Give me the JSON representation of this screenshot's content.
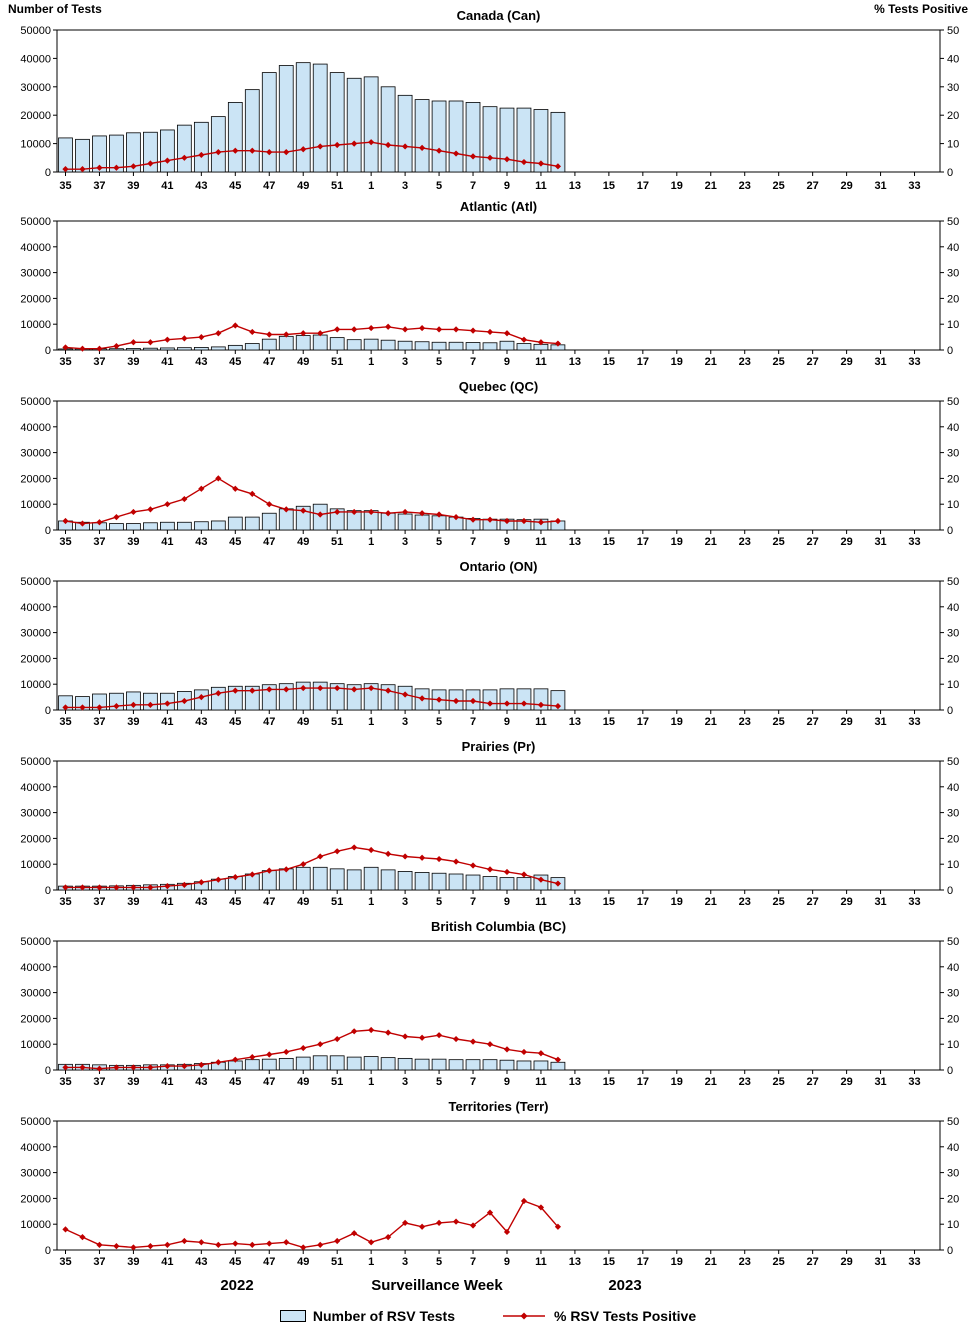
{
  "page": {
    "left_axis_title": "Number of Tests",
    "right_axis_title": "% Tests Positive",
    "x_axis_title": "Surveillance Week",
    "year_left": "2022",
    "year_right": "2023",
    "legend": {
      "bars": "Number of RSV Tests",
      "line": "% RSV Tests Positive"
    },
    "colors": {
      "bar_fill": "#cbe4f5",
      "bar_stroke": "#000000",
      "line": "#c00000"
    }
  },
  "x_axis": {
    "tick_labels": [
      "35",
      "37",
      "39",
      "41",
      "43",
      "45",
      "47",
      "49",
      "51",
      "1",
      "3",
      "5",
      "7",
      "9",
      "11",
      "13",
      "15",
      "17",
      "19",
      "21",
      "23",
      "25",
      "27",
      "29",
      "31",
      "33"
    ],
    "weeks_2022": "35-52",
    "weeks_2023": "1-34"
  },
  "weeks": [
    35,
    36,
    37,
    38,
    39,
    40,
    41,
    42,
    43,
    44,
    45,
    46,
    47,
    48,
    49,
    50,
    51,
    52,
    1,
    2,
    3,
    4,
    5,
    6,
    7,
    8,
    9,
    10,
    11,
    12
  ],
  "chart_data": [
    {
      "type": "bar+line",
      "title": "Canada (Can)",
      "ylim_left": [
        0,
        50000
      ],
      "ylim_right": [
        0,
        50
      ],
      "series": [
        {
          "name": "Number of RSV Tests",
          "kind": "bar",
          "axis": "left",
          "values": [
            12000,
            11500,
            12700,
            13000,
            13800,
            14000,
            14800,
            16500,
            17500,
            19500,
            24500,
            29000,
            35000,
            37500,
            38500,
            38000,
            35000,
            33000,
            33500,
            30000,
            27000,
            25500,
            25000,
            25000,
            24500,
            23000,
            22500,
            22500,
            22000,
            21000
          ]
        },
        {
          "name": "% RSV Tests Positive",
          "kind": "line",
          "axis": "right",
          "values": [
            1,
            1,
            1.5,
            1.5,
            2,
            3,
            4,
            5,
            6,
            7,
            7.5,
            7.5,
            7,
            7,
            8,
            9,
            9.5,
            10,
            10.5,
            9.5,
            9,
            8.5,
            7.5,
            6.5,
            5.5,
            5,
            4.5,
            3.5,
            3,
            2
          ]
        }
      ]
    },
    {
      "type": "bar+line",
      "title": "Atlantic (Atl)",
      "ylim_left": [
        0,
        50000
      ],
      "ylim_right": [
        0,
        50
      ],
      "series": [
        {
          "name": "Number of RSV Tests",
          "kind": "bar",
          "axis": "left",
          "values": [
            400,
            400,
            450,
            500,
            600,
            700,
            800,
            900,
            1000,
            1200,
            1800,
            2500,
            4200,
            5300,
            5600,
            5800,
            4800,
            4000,
            4200,
            3800,
            3400,
            3200,
            3000,
            3000,
            2900,
            2800,
            3400,
            2500,
            2200,
            2000
          ]
        },
        {
          "name": "% RSV Tests Positive",
          "kind": "line",
          "axis": "right",
          "values": [
            1,
            0.5,
            0.5,
            1.5,
            3,
            3,
            4,
            4.5,
            5,
            6.5,
            9.5,
            7,
            6,
            6,
            6.5,
            6.5,
            8,
            8,
            8.5,
            9,
            8,
            8.5,
            8,
            8,
            7.5,
            7,
            6.5,
            4,
            3,
            2.5
          ]
        }
      ]
    },
    {
      "type": "bar+line",
      "title": "Quebec (QC)",
      "ylim_left": [
        0,
        50000
      ],
      "ylim_right": [
        0,
        50
      ],
      "series": [
        {
          "name": "Number of RSV Tests",
          "kind": "bar",
          "axis": "left",
          "values": [
            3500,
            3000,
            2800,
            2500,
            2500,
            2800,
            3000,
            3000,
            3200,
            3500,
            5000,
            5000,
            6500,
            8200,
            9200,
            10000,
            8200,
            7500,
            7500,
            6500,
            6200,
            5800,
            5500,
            5000,
            4500,
            4200,
            4200,
            4000,
            4200,
            3500
          ]
        },
        {
          "name": "% RSV Tests Positive",
          "kind": "line",
          "axis": "right",
          "values": [
            3.5,
            2.5,
            3,
            5,
            7,
            8,
            10,
            12,
            16,
            20,
            16,
            14,
            10,
            8,
            7.5,
            6,
            7,
            7,
            7,
            6.5,
            7,
            6.5,
            6,
            5,
            4,
            4,
            3.5,
            3.5,
            3,
            3.5
          ]
        }
      ]
    },
    {
      "type": "bar+line",
      "title": "Ontario (ON)",
      "ylim_left": [
        0,
        50000
      ],
      "ylim_right": [
        0,
        50
      ],
      "series": [
        {
          "name": "Number of RSV Tests",
          "kind": "bar",
          "axis": "left",
          "values": [
            5500,
            5200,
            6200,
            6500,
            7000,
            6500,
            6500,
            7200,
            7800,
            8800,
            9200,
            9200,
            9800,
            10200,
            10800,
            10800,
            10200,
            9800,
            10200,
            9800,
            9200,
            8200,
            7800,
            7800,
            7800,
            7800,
            8200,
            8200,
            8200,
            7500
          ]
        },
        {
          "name": "% RSV Tests Positive",
          "kind": "line",
          "axis": "right",
          "values": [
            1,
            1,
            1,
            1.5,
            2,
            2,
            2.5,
            3.5,
            5,
            6.5,
            7.5,
            7.5,
            8,
            8,
            8.5,
            8.5,
            8.5,
            8,
            8.5,
            7.5,
            6,
            4.5,
            4,
            3.5,
            3.5,
            2.5,
            2.5,
            2.5,
            2,
            1.5
          ]
        }
      ]
    },
    {
      "type": "bar+line",
      "title": "Prairies (Pr)",
      "ylim_left": [
        0,
        50000
      ],
      "ylim_right": [
        0,
        50
      ],
      "series": [
        {
          "name": "Number of RSV Tests",
          "kind": "bar",
          "axis": "left",
          "values": [
            1500,
            1500,
            1500,
            1600,
            1800,
            2000,
            2200,
            2600,
            3200,
            4200,
            5200,
            6200,
            7500,
            8200,
            8800,
            8800,
            8200,
            7800,
            8800,
            7800,
            7200,
            6800,
            6500,
            6200,
            5800,
            5200,
            4800,
            4800,
            5800,
            4800
          ]
        },
        {
          "name": "% RSV Tests Positive",
          "kind": "line",
          "axis": "right",
          "values": [
            1,
            1,
            1,
            1,
            1,
            1,
            1.5,
            2,
            3,
            4,
            5,
            6,
            7.5,
            8,
            10,
            13,
            15,
            16.5,
            15.5,
            14,
            13,
            12.5,
            12,
            11,
            9.5,
            8,
            7,
            6,
            4,
            2.5
          ]
        }
      ]
    },
    {
      "type": "bar+line",
      "title": "British Columbia (BC)",
      "ylim_left": [
        0,
        50000
      ],
      "ylim_right": [
        0,
        50
      ],
      "series": [
        {
          "name": "Number of RSV Tests",
          "kind": "bar",
          "axis": "left",
          "values": [
            2200,
            2200,
            2000,
            1800,
            1800,
            2000,
            2000,
            2200,
            2500,
            3000,
            3500,
            4000,
            4200,
            4500,
            5000,
            5500,
            5500,
            5000,
            5200,
            4800,
            4500,
            4200,
            4200,
            4000,
            4000,
            4000,
            3800,
            3500,
            3500,
            3000
          ]
        },
        {
          "name": "% RSV Tests Positive",
          "kind": "line",
          "axis": "right",
          "values": [
            1,
            1,
            0.5,
            1,
            1,
            1,
            1.5,
            1.5,
            2,
            3,
            4,
            5,
            6,
            7,
            8.5,
            10,
            12,
            15,
            15.5,
            14.5,
            13,
            12.5,
            13.5,
            12,
            11,
            10,
            8,
            7,
            6.5,
            4
          ]
        }
      ]
    },
    {
      "type": "bar+line",
      "title": "Territories (Terr)",
      "ylim_left": [
        0,
        50000
      ],
      "ylim_right": [
        0,
        50
      ],
      "series": [
        {
          "name": "Number of RSV Tests",
          "kind": "bar",
          "axis": "left",
          "values": [
            100,
            80,
            60,
            50,
            50,
            60,
            80,
            100,
            100,
            100,
            120,
            100,
            120,
            150,
            100,
            120,
            150,
            200,
            150,
            150,
            200,
            200,
            250,
            250,
            200,
            250,
            200,
            300,
            250,
            200
          ]
        },
        {
          "name": "% RSV Tests Positive",
          "kind": "line",
          "axis": "right",
          "values": [
            8,
            5,
            2,
            1.5,
            1,
            1.5,
            2,
            3.5,
            3,
            2,
            2.5,
            2,
            2.5,
            3,
            1,
            2,
            3.5,
            6.5,
            3,
            5,
            10.5,
            9,
            10.5,
            11,
            9.5,
            14.5,
            7,
            19,
            16.5,
            9
          ]
        }
      ]
    }
  ]
}
